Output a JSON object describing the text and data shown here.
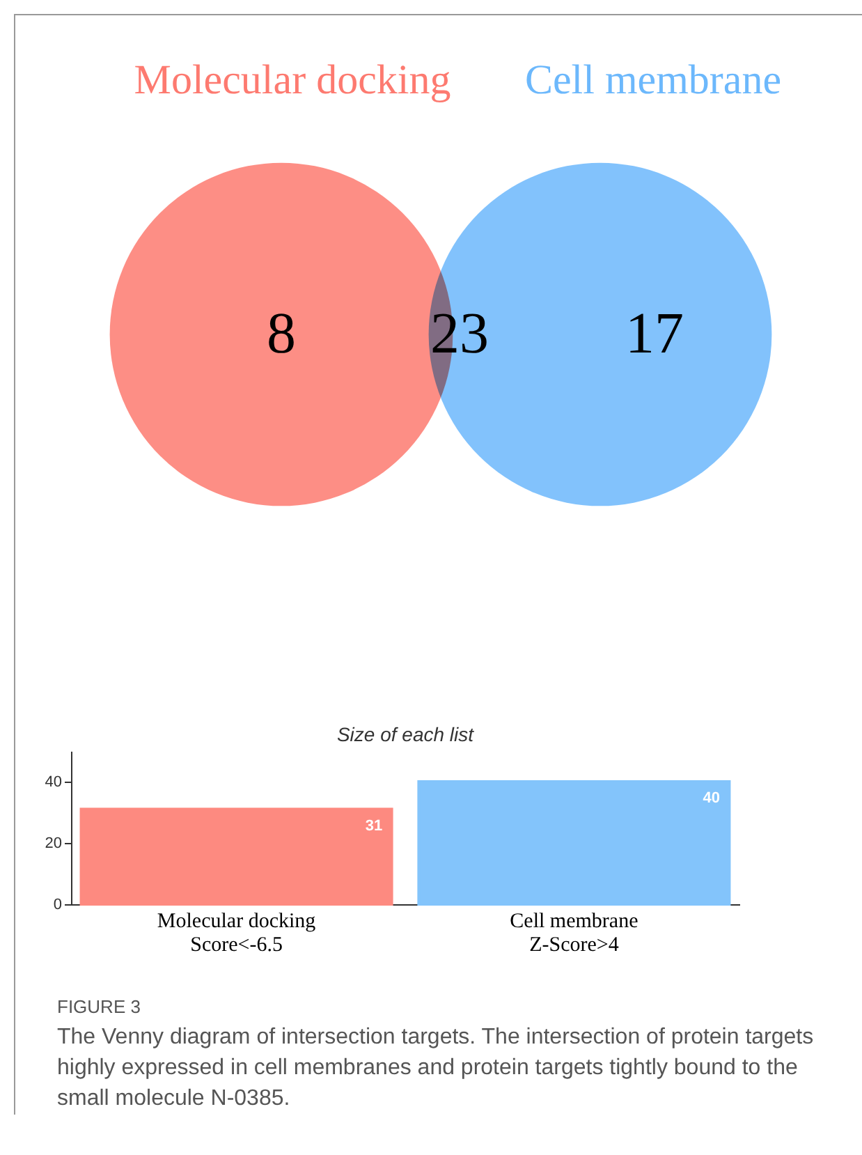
{
  "chart_data": [
    {
      "type": "other",
      "categories": [
        "Molecular docking",
        "Cell membrane"
      ],
      "colors": [
        "#fd7a70",
        "#6cb8fc"
      ],
      "annotations": [
        "8",
        "23",
        "17"
      ]
    },
    {
      "type": "bar",
      "title": "Size of each list",
      "categories": [
        "Molecular docking\nScore<-6.5",
        "Cell membrane\nZ-Score>4"
      ],
      "values": [
        31,
        40
      ],
      "colors": [
        "#fd8a80",
        "#83c4fb"
      ],
      "ylim": [
        0,
        50
      ],
      "yticks": [
        0,
        20,
        40
      ],
      "data_labels": true,
      "annotations": [
        "FIGURE 3",
        "The Venny diagram of intersection targets. The intersection of protein targets highly expressed in cell membranes and protein targets tightly bound to the small molecule N-0385."
      ]
    }
  ]
}
